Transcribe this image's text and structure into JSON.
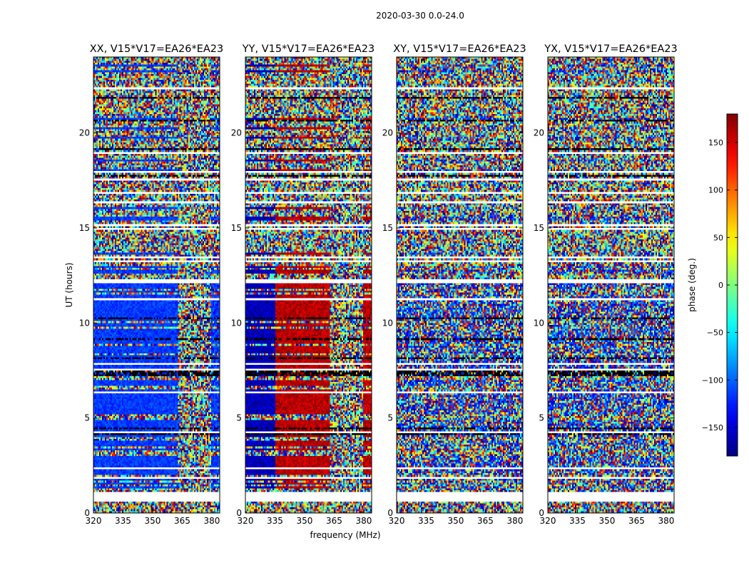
{
  "figure_title": "2020-03-30 0.0-24.0",
  "chart_data": {
    "type": "heatmap",
    "title": "2020-03-30 0.0-24.0",
    "xlabel": "frequency (MHz)",
    "ylabel": "UT (hours)",
    "xlim": [
      320,
      384
    ],
    "ylim": [
      0,
      24
    ],
    "xticks": [
      320,
      335,
      350,
      365,
      380
    ],
    "yticks": [
      0,
      5,
      10,
      15,
      20
    ],
    "panels": [
      {
        "title": "XX, V15*V17=EA26*EA23",
        "correlation": "XX",
        "pattern": "xx"
      },
      {
        "title": "YY, V15*V17=EA26*EA23",
        "correlation": "YY",
        "pattern": "yy"
      },
      {
        "title": "XY, V15*V17=EA26*EA23",
        "correlation": "XY",
        "pattern": "noise"
      },
      {
        "title": "YX, V15*V17=EA26*EA23",
        "correlation": "YX",
        "pattern": "noise"
      }
    ],
    "colorbar": {
      "label": "phase (deg.)",
      "range": [
        -180,
        180
      ],
      "ticks": [
        150,
        100,
        50,
        0,
        -50,
        -100,
        -150
      ],
      "tick_labels": [
        "150",
        "100",
        "50",
        "0",
        "−50",
        "−100",
        "−150"
      ],
      "colormap": "jet"
    },
    "flagged_time_ranges_hours": [
      [
        0.6,
        1.1
      ],
      [
        22.3,
        22.4
      ],
      [
        14.9,
        15.0
      ],
      [
        16.8,
        16.9
      ],
      [
        12.2,
        12.3
      ]
    ],
    "structure_notes": {
      "xx_dominant_phase_deg": -115,
      "yy_low_freq_phase_deg": -160,
      "yy_high_freq_phase_deg": 160,
      "edge_freq_mhz": 363
    }
  }
}
